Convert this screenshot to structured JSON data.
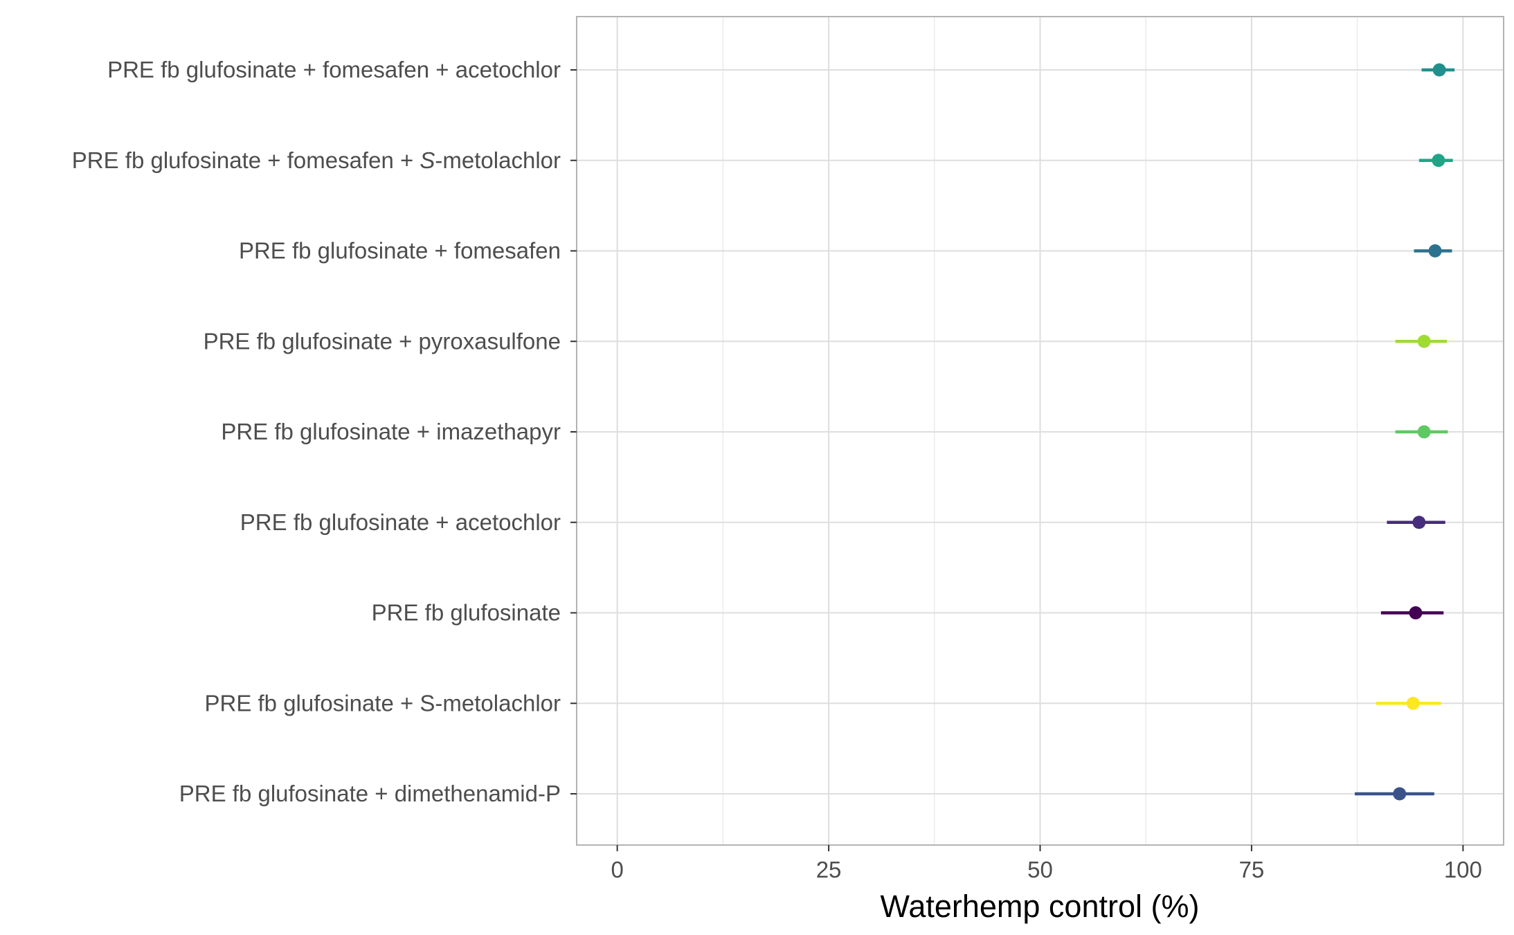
{
  "chart_data": {
    "type": "scatter",
    "xlabel": "Waterhemp control (%)",
    "ylabel": "",
    "title": "",
    "xlim": [
      -4.8,
      104.8
    ],
    "x_ticks": [
      0,
      25,
      50,
      75,
      100
    ],
    "x_tick_labels": [
      "0",
      "25",
      "50",
      "75",
      "100"
    ],
    "grid": true,
    "legend": "none",
    "points": [
      {
        "label": "PRE fb glufosinate + fomesafen + acetochlor",
        "value": 97.2,
        "lower": 95.1,
        "upper": 99.0,
        "color": "#21908C"
      },
      {
        "label": "PRE fb glufosinate + fomesafen + S-metolachlor",
        "value": 97.1,
        "lower": 94.8,
        "upper": 98.8,
        "color": "#20A486"
      },
      {
        "label": "PRE fb glufosinate + fomesafen",
        "value": 96.7,
        "lower": 94.2,
        "upper": 98.7,
        "color": "#2C728E"
      },
      {
        "label": "PRE fb glufosinate + pyroxasulfone",
        "value": 95.4,
        "lower": 92.0,
        "upper": 98.1,
        "color": "#A0DA39"
      },
      {
        "label": "PRE fb glufosinate + imazethapyr",
        "value": 95.4,
        "lower": 92.0,
        "upper": 98.2,
        "color": "#5EC962"
      },
      {
        "label": "PRE fb glufosinate + acetochlor",
        "value": 94.8,
        "lower": 91.0,
        "upper": 97.9,
        "color": "#472D7B"
      },
      {
        "label": "PRE fb glufosinate",
        "value": 94.4,
        "lower": 90.3,
        "upper": 97.7,
        "color": "#440154"
      },
      {
        "label": "PRE fb glufosinate + S-metolachlor",
        "value": 94.1,
        "lower": 89.7,
        "upper": 97.4,
        "color": "#FDE725"
      },
      {
        "label": "PRE fb glufosinate + dimethenamid-P",
        "value": 92.5,
        "lower": 87.2,
        "upper": 96.6,
        "color": "#3B528B"
      }
    ]
  }
}
